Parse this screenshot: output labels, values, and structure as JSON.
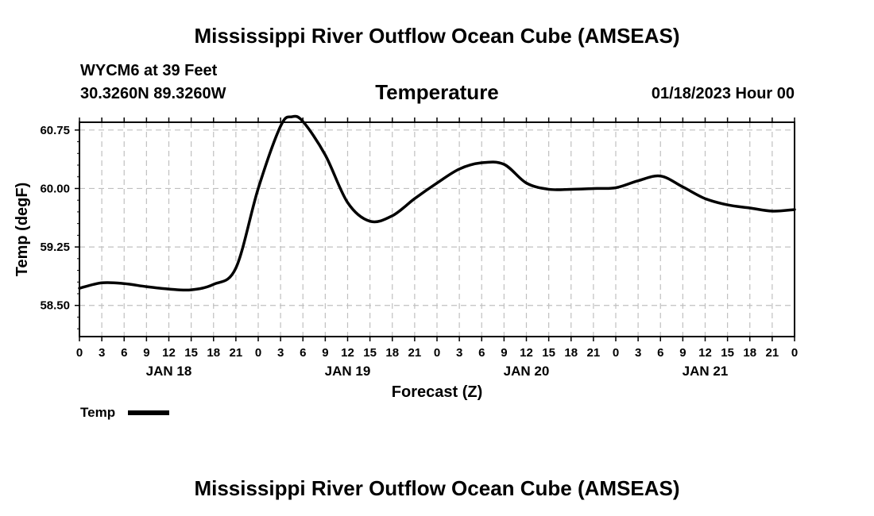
{
  "header": {
    "title": "Mississippi River Outflow Ocean Cube (AMSEAS)",
    "station": "WYCM6 at 39 Feet",
    "coords": "30.3260N  89.3260W",
    "datetime": "01/18/2023 Hour 00"
  },
  "footer": {
    "title": "Mississippi River Outflow Ocean Cube (AMSEAS)"
  },
  "colors": {
    "line": "#000000",
    "grid": "#c0c0c0",
    "frame": "#000000"
  },
  "chart_data": {
    "type": "line",
    "title": "Temperature",
    "xlabel": "Forecast (Z)",
    "ylabel": "Temp (degF)",
    "grid": true,
    "legend_position": "bottom-left",
    "x_unit": "hours from 01/18/2023 00Z",
    "xlim": [
      0,
      96
    ],
    "ylim": [
      58.1,
      60.85
    ],
    "x_ticks": [
      0,
      3,
      6,
      9,
      12,
      15,
      18,
      21,
      24,
      27,
      30,
      33,
      36,
      39,
      42,
      45,
      48,
      51,
      54,
      57,
      60,
      63,
      66,
      69,
      72,
      75,
      78,
      81,
      84,
      87,
      90,
      93,
      96
    ],
    "x_tick_labels": [
      "0",
      "3",
      "6",
      "9",
      "12",
      "15",
      "18",
      "21",
      "0",
      "3",
      "6",
      "9",
      "12",
      "15",
      "18",
      "21",
      "0",
      "3",
      "6",
      "9",
      "12",
      "15",
      "18",
      "21",
      "0",
      "3",
      "6",
      "9",
      "12",
      "15",
      "18",
      "21",
      "0"
    ],
    "day_labels": [
      {
        "label": "JAN 18",
        "x": 12
      },
      {
        "label": "JAN 19",
        "x": 36
      },
      {
        "label": "JAN 20",
        "x": 60
      },
      {
        "label": "JAN 21",
        "x": 84
      }
    ],
    "y_ticks": [
      58.5,
      59.25,
      60.0,
      60.75
    ],
    "y_tick_labels": [
      "58.50",
      "59.25",
      "60.00",
      "60.75"
    ],
    "series": [
      {
        "name": "Temp",
        "x": [
          0,
          3,
          6,
          9,
          12,
          15,
          18,
          21,
          24,
          27,
          28.5,
          30,
          33,
          36,
          39,
          42,
          45,
          48,
          51,
          54,
          57,
          60,
          63,
          66,
          69,
          72,
          75,
          78,
          81,
          84,
          87,
          90,
          93,
          96
        ],
        "y": [
          58.72,
          58.79,
          58.78,
          58.74,
          58.71,
          58.7,
          58.77,
          58.98,
          60.0,
          60.8,
          60.92,
          60.86,
          60.43,
          59.82,
          59.58,
          59.65,
          59.87,
          60.07,
          60.25,
          60.33,
          60.31,
          60.07,
          59.99,
          59.99,
          60.0,
          60.01,
          60.1,
          60.16,
          60.02,
          59.87,
          59.79,
          59.75,
          59.71,
          59.73
        ]
      }
    ]
  }
}
